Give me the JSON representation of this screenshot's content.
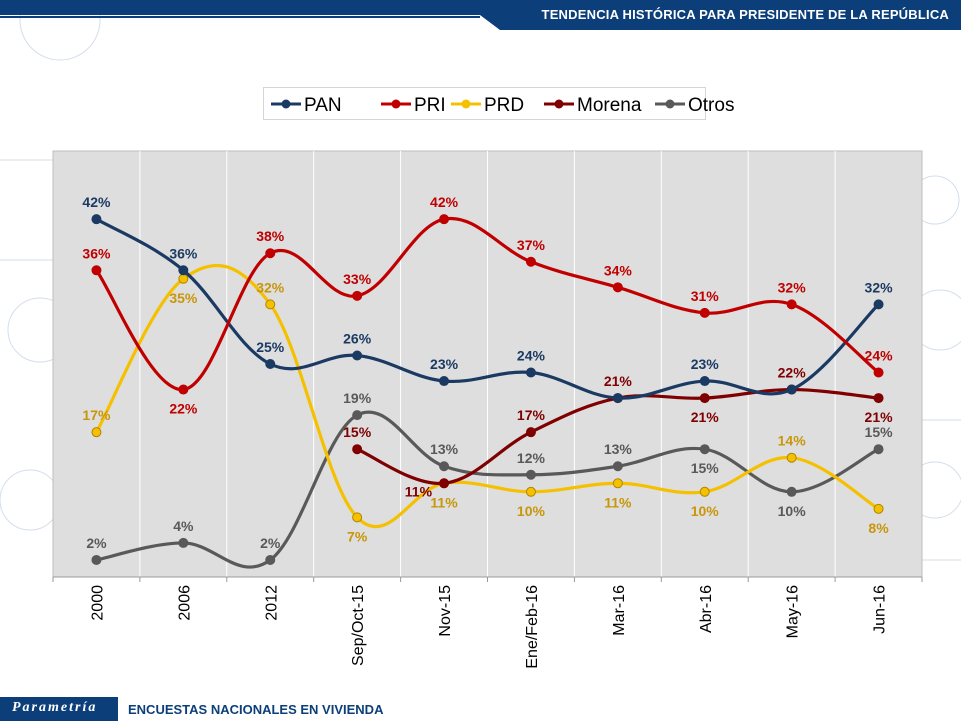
{
  "header": {
    "title": "TENDENCIA HISTÓRICA PARA PRESIDENTE DE LA REPÚBLICA"
  },
  "footer": {
    "brand": "Parametría",
    "text": "ENCUESTAS NACIONALES  EN VIVIENDA"
  },
  "colors": {
    "header_bg": "#0c3f7a",
    "plot_bg": "#dedede",
    "PAN": "#1b3a63",
    "PRI": "#c00000",
    "PRD": "#f5c000",
    "PRD_label": "#c8960a",
    "Morena": "#7f0000",
    "Otros": "#595959"
  },
  "chart_data": {
    "type": "line",
    "categories": [
      "2000",
      "2006",
      "2012",
      "Sep/Oct-15",
      "Nov-15",
      "Ene/Feb-16",
      "Mar-16",
      "Abr-16",
      "May-16",
      "Jun-16"
    ],
    "ylim": [
      0,
      50
    ],
    "grid": "vertical",
    "legend": "top",
    "series": [
      {
        "name": "PAN",
        "values": [
          42,
          36,
          25,
          26,
          23,
          24,
          21,
          23,
          22,
          32
        ],
        "labels": [
          "42%",
          "36%",
          "25%",
          "26%",
          "23%",
          "24%",
          "",
          "23%",
          "",
          "32%"
        ]
      },
      {
        "name": "PRI",
        "values": [
          36,
          22,
          38,
          33,
          42,
          37,
          34,
          31,
          32,
          24
        ],
        "labels": [
          "36%",
          "22%",
          "38%",
          "33%",
          "42%",
          "37%",
          "34%",
          "31%",
          "32%",
          "24%"
        ]
      },
      {
        "name": "PRD",
        "values": [
          17,
          35,
          32,
          7,
          11,
          10,
          11,
          10,
          14,
          8
        ],
        "labels": [
          "17%",
          "35%",
          "32%",
          "7%",
          "11%",
          "10%",
          "11%",
          "10%",
          "14%",
          "8%"
        ]
      },
      {
        "name": "Morena",
        "values": [
          null,
          null,
          null,
          15,
          11,
          17,
          21,
          21,
          22,
          21
        ],
        "labels": [
          "",
          "",
          "",
          "15%",
          "11%",
          "17%",
          "21%",
          "21%",
          "22%",
          "21%"
        ]
      },
      {
        "name": "Otros",
        "values": [
          2,
          4,
          2,
          19,
          13,
          12,
          13,
          15,
          10,
          15
        ],
        "labels": [
          "2%",
          "4%",
          "2%",
          "19%",
          "13%",
          "12%",
          "13%",
          "15%",
          "10%",
          "15%"
        ]
      }
    ]
  }
}
